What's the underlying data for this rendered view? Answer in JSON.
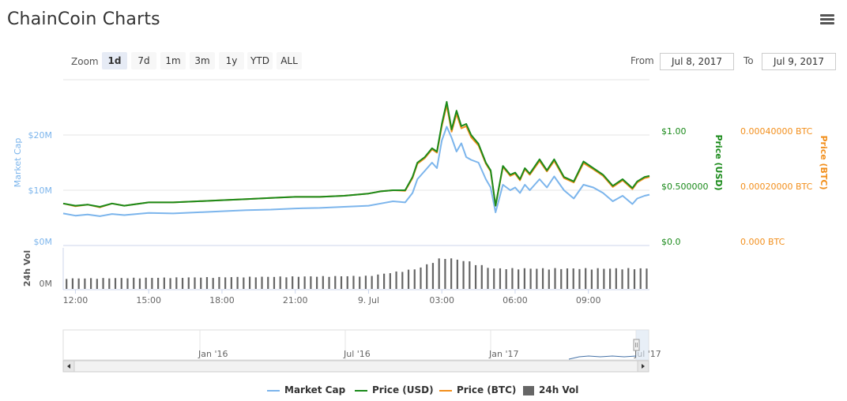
{
  "header": {
    "title": "ChainCoin Charts"
  },
  "toolbar": {
    "zoom_label": "Zoom",
    "zoom_buttons": [
      "1d",
      "7d",
      "1m",
      "3m",
      "1y",
      "YTD",
      "ALL"
    ],
    "active_zoom": "1d",
    "from_label": "From",
    "from_value": "Jul 8, 2017",
    "to_label": "To",
    "to_value": "Jul 9, 2017"
  },
  "colors": {
    "market_cap": "#7cb5ec",
    "price_usd": "#1a8a1a",
    "price_btc": "#f28f1c",
    "volume": "#666666"
  },
  "chart_data": {
    "type": "line",
    "x_ticks": [
      "12:00",
      "15:00",
      "18:00",
      "21:00",
      "9. Jul",
      "03:00",
      "06:00",
      "09:00"
    ],
    "x_tick_hours": [
      0,
      3,
      6,
      9,
      12,
      15,
      18,
      21
    ],
    "x_range_hours": [
      -0.5,
      23.5
    ],
    "axes": {
      "market_cap": {
        "label": "Market Cap",
        "ticks": [
          "$0M",
          "$10M",
          "$20M"
        ],
        "range": [
          0,
          30
        ]
      },
      "price_usd": {
        "label": "Price (USD)",
        "ticks": [
          "$0.0",
          "$0.500000",
          "$1.00"
        ],
        "range": [
          0,
          1.5
        ]
      },
      "price_btc": {
        "label": "Price (BTC)",
        "ticks": [
          "0.000 BTC",
          "0.00020000 BTC",
          "0.00040000 BTC"
        ],
        "range": [
          0,
          0.0006
        ]
      },
      "volume": {
        "label": "24h Vol",
        "ticks": [
          "0M"
        ]
      }
    },
    "series": [
      {
        "name": "Market Cap",
        "key": "market_cap",
        "x": [
          -0.5,
          0,
          0.5,
          1,
          1.5,
          2,
          3,
          4,
          5,
          6,
          7,
          8,
          9,
          10,
          11,
          12,
          12.5,
          13,
          13.5,
          13.8,
          14,
          14.3,
          14.6,
          14.8,
          15,
          15.2,
          15.4,
          15.6,
          15.8,
          16,
          16.2,
          16.5,
          16.8,
          17,
          17.2,
          17.5,
          17.8,
          18,
          18.2,
          18.4,
          18.6,
          19,
          19.3,
          19.6,
          20,
          20.4,
          20.8,
          21.2,
          21.6,
          22,
          22.4,
          22.8,
          23,
          23.3,
          23.5
        ],
        "values": [
          5.8,
          5.4,
          5.6,
          5.3,
          5.7,
          5.5,
          5.9,
          5.8,
          6.0,
          6.2,
          6.4,
          6.5,
          6.7,
          6.8,
          7.0,
          7.2,
          7.6,
          8.0,
          7.8,
          9.5,
          12.0,
          13.5,
          15.0,
          14.0,
          19.0,
          21.5,
          19.5,
          17.0,
          18.5,
          16.0,
          15.5,
          15.0,
          12.0,
          10.5,
          6.0,
          11.0,
          10.0,
          10.5,
          9.5,
          11.0,
          10.0,
          12.0,
          10.5,
          12.5,
          10.0,
          8.5,
          11.0,
          10.5,
          9.5,
          8.0,
          9.0,
          7.5,
          8.5,
          9.0,
          9.2
        ]
      },
      {
        "name": "Price (USD)",
        "key": "price_usd",
        "x": [
          -0.5,
          0,
          0.5,
          1,
          1.5,
          2,
          3,
          4,
          5,
          6,
          7,
          8,
          9,
          10,
          11,
          12,
          12.5,
          13,
          13.5,
          13.8,
          14,
          14.3,
          14.6,
          14.8,
          15,
          15.2,
          15.4,
          15.6,
          15.8,
          16,
          16.2,
          16.5,
          16.8,
          17,
          17.2,
          17.5,
          17.8,
          18,
          18.2,
          18.4,
          18.6,
          19,
          19.3,
          19.6,
          20,
          20.4,
          20.8,
          21.2,
          21.6,
          22,
          22.4,
          22.8,
          23,
          23.3,
          23.5
        ],
        "values": [
          0.38,
          0.36,
          0.37,
          0.35,
          0.38,
          0.36,
          0.39,
          0.39,
          0.4,
          0.41,
          0.42,
          0.43,
          0.44,
          0.44,
          0.45,
          0.47,
          0.49,
          0.5,
          0.5,
          0.62,
          0.75,
          0.8,
          0.88,
          0.85,
          1.1,
          1.3,
          1.05,
          1.22,
          1.08,
          1.1,
          1.0,
          0.92,
          0.75,
          0.68,
          0.36,
          0.72,
          0.64,
          0.66,
          0.6,
          0.7,
          0.65,
          0.78,
          0.68,
          0.78,
          0.62,
          0.58,
          0.76,
          0.7,
          0.64,
          0.54,
          0.6,
          0.52,
          0.58,
          0.62,
          0.63
        ]
      },
      {
        "name": "Price (BTC)",
        "key": "price_btc",
        "x": [
          -0.5,
          0,
          0.5,
          1,
          1.5,
          2,
          3,
          4,
          5,
          6,
          7,
          8,
          9,
          10,
          11,
          12,
          12.5,
          13,
          13.5,
          13.8,
          14,
          14.3,
          14.6,
          14.8,
          15,
          15.2,
          15.4,
          15.6,
          15.8,
          16,
          16.2,
          16.5,
          16.8,
          17,
          17.2,
          17.5,
          17.8,
          18,
          18.2,
          18.4,
          18.6,
          19,
          19.3,
          19.6,
          20,
          20.4,
          20.8,
          21.2,
          21.6,
          22,
          22.4,
          22.8,
          23,
          23.3,
          23.5
        ],
        "values": [
          0.000152,
          0.000142,
          0.000148,
          0.000138,
          0.000152,
          0.000144,
          0.000156,
          0.000156,
          0.00016,
          0.000164,
          0.000168,
          0.000172,
          0.000176,
          0.000176,
          0.00018,
          0.000188,
          0.000196,
          0.0002,
          0.000198,
          0.000244,
          0.000296,
          0.000316,
          0.000348,
          0.000336,
          0.000432,
          0.000508,
          0.000412,
          0.000476,
          0.000424,
          0.000432,
          0.000392,
          0.000362,
          0.000296,
          0.000268,
          0.000144,
          0.000284,
          0.000252,
          0.00026,
          0.000236,
          0.000276,
          0.000256,
          0.000306,
          0.000268,
          0.000306,
          0.000244,
          0.000228,
          0.000298,
          0.000276,
          0.000252,
          0.000212,
          0.000236,
          0.000204,
          0.000228,
          0.000244,
          0.000248
        ]
      },
      {
        "name": "24h Vol",
        "key": "volume",
        "type": "column",
        "x_start": -0.4,
        "x_step": 0.25,
        "note": "relative heights 0-1",
        "values_profile": [
          [
            -0.5,
            0.28
          ],
          [
            12,
            0.35
          ],
          [
            13,
            0.45
          ],
          [
            14,
            0.55
          ],
          [
            15,
            0.85
          ],
          [
            16,
            0.75
          ],
          [
            17,
            0.55
          ],
          [
            18,
            0.55
          ],
          [
            21,
            0.55
          ],
          [
            23.5,
            0.55
          ]
        ]
      }
    ]
  },
  "navigator": {
    "ticks": [
      "Jan '16",
      "Jul '16",
      "Jan '17",
      "Jul '17"
    ]
  },
  "legend": [
    {
      "name": "Market Cap",
      "color": "#7cb5ec"
    },
    {
      "name": "Price (USD)",
      "color": "#1a8a1a"
    },
    {
      "name": "Price (BTC)",
      "color": "#f28f1c"
    },
    {
      "name": "24h Vol",
      "color": "#666666"
    }
  ]
}
